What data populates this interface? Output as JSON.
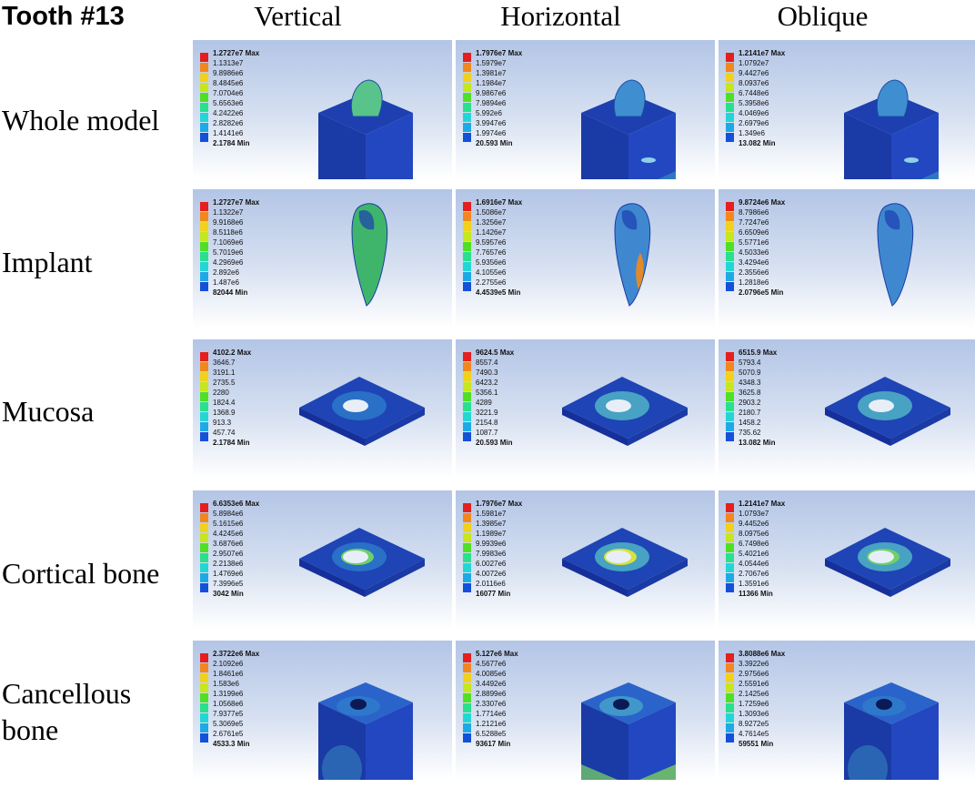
{
  "title": "Tooth #13",
  "columns": [
    "Vertical",
    "Horizontal",
    "Oblique"
  ],
  "rows": [
    {
      "label_lines": [
        "Whole model"
      ]
    },
    {
      "label_lines": [
        "Implant"
      ]
    },
    {
      "label_lines": [
        "Mucosa"
      ]
    },
    {
      "label_lines": [
        "Cortical bone"
      ]
    },
    {
      "label_lines": [
        "Cancellous",
        "bone"
      ]
    }
  ],
  "legend_colors": [
    "#e51e1e",
    "#f2871d",
    "#f0d21a",
    "#c6e61d",
    "#4fe025",
    "#28e08e",
    "#23d6d6",
    "#1ea9e6",
    "#1450d8"
  ],
  "legends": [
    [
      {
        "max": "1.2727e7 Max",
        "mid": [
          "1.1313e7",
          "9.8986e6",
          "8.4845e6",
          "7.0704e6",
          "5.6563e6",
          "4.2422e6",
          "2.8282e6",
          "1.4141e6"
        ],
        "min": "2.1784 Min"
      },
      {
        "max": "1.7976e7 Max",
        "mid": [
          "1.5979e7",
          "1.3981e7",
          "1.1984e7",
          "9.9867e6",
          "7.9894e6",
          "5.992e6",
          "3.9947e6",
          "1.9974e6"
        ],
        "min": "20.593 Min"
      },
      {
        "max": "1.2141e7 Max",
        "mid": [
          "1.0792e7",
          "9.4427e6",
          "8.0937e6",
          "6.7448e6",
          "5.3958e6",
          "4.0469e6",
          "2.6979e6",
          "1.349e6"
        ],
        "min": "13.082 Min"
      }
    ],
    [
      {
        "max": "1.2727e7 Max",
        "mid": [
          "1.1322e7",
          "9.9168e6",
          "8.5118e6",
          "7.1069e6",
          "5.7019e6",
          "4.2969e6",
          "2.892e6",
          "1.487e6"
        ],
        "min": "82044 Min"
      },
      {
        "max": "1.6916e7 Max",
        "mid": [
          "1.5086e7",
          "1.3256e7",
          "1.1426e7",
          "9.5957e6",
          "7.7657e6",
          "5.9356e6",
          "4.1055e6",
          "2.2755e6"
        ],
        "min": "4.4539e5 Min"
      },
      {
        "max": "9.8724e6 Max",
        "mid": [
          "8.7986e6",
          "7.7247e6",
          "6.6509e6",
          "5.5771e6",
          "4.5033e6",
          "3.4294e6",
          "2.3556e6",
          "1.2818e6"
        ],
        "min": "2.0796e5 Min"
      }
    ],
    [
      {
        "max": "4102.2 Max",
        "mid": [
          "3646.7",
          "3191.1",
          "2735.5",
          "2280",
          "1824.4",
          "1368.9",
          "913.3",
          "457.74"
        ],
        "min": "2.1784 Min"
      },
      {
        "max": "9624.5 Max",
        "mid": [
          "8557.4",
          "7490.3",
          "6423.2",
          "5356.1",
          "4289",
          "3221.9",
          "2154.8",
          "1087.7"
        ],
        "min": "20.593 Min"
      },
      {
        "max": "6515.9 Max",
        "mid": [
          "5793.4",
          "5070.9",
          "4348.3",
          "3625.8",
          "2903.2",
          "2180.7",
          "1458.2",
          "735.62"
        ],
        "min": "13.082 Min"
      }
    ],
    [
      {
        "max": "6.6353e6 Max",
        "mid": [
          "5.8984e6",
          "5.1615e6",
          "4.4245e6",
          "3.6876e6",
          "2.9507e6",
          "2.2138e6",
          "1.4769e6",
          "7.3996e5"
        ],
        "min": "3042 Min"
      },
      {
        "max": "1.7976e7 Max",
        "mid": [
          "1.5981e7",
          "1.3985e7",
          "1.1989e7",
          "9.9939e6",
          "7.9983e6",
          "6.0027e6",
          "4.0072e6",
          "2.0116e6"
        ],
        "min": "16077 Min"
      },
      {
        "max": "1.2141e7 Max",
        "mid": [
          "1.0793e7",
          "9.4452e6",
          "8.0975e6",
          "6.7498e6",
          "5.4021e6",
          "4.0544e6",
          "2.7067e6",
          "1.3591e6"
        ],
        "min": "11366 Min"
      }
    ],
    [
      {
        "max": "2.3722e6 Max",
        "mid": [
          "2.1092e6",
          "1.8461e6",
          "1.583e6",
          "1.3199e6",
          "1.0568e6",
          "7.9377e5",
          "5.3069e5",
          "2.6761e5"
        ],
        "min": "4533.3 Min"
      },
      {
        "max": "5.127e6 Max",
        "mid": [
          "4.5677e6",
          "4.0085e6",
          "3.4492e6",
          "2.8899e6",
          "2.3307e6",
          "1.7714e6",
          "1.2121e6",
          "6.5288e5"
        ],
        "min": "93617 Min"
      },
      {
        "max": "3.8088e6 Max",
        "mid": [
          "3.3922e6",
          "2.9756e6",
          "2.5591e6",
          "2.1425e6",
          "1.7259e6",
          "1.3093e6",
          "8.9272e5",
          "4.7614e5"
        ],
        "min": "59551 Min"
      }
    ]
  ],
  "model_types": [
    "whole-model",
    "implant",
    "mucosa",
    "cortical",
    "cancellous"
  ]
}
